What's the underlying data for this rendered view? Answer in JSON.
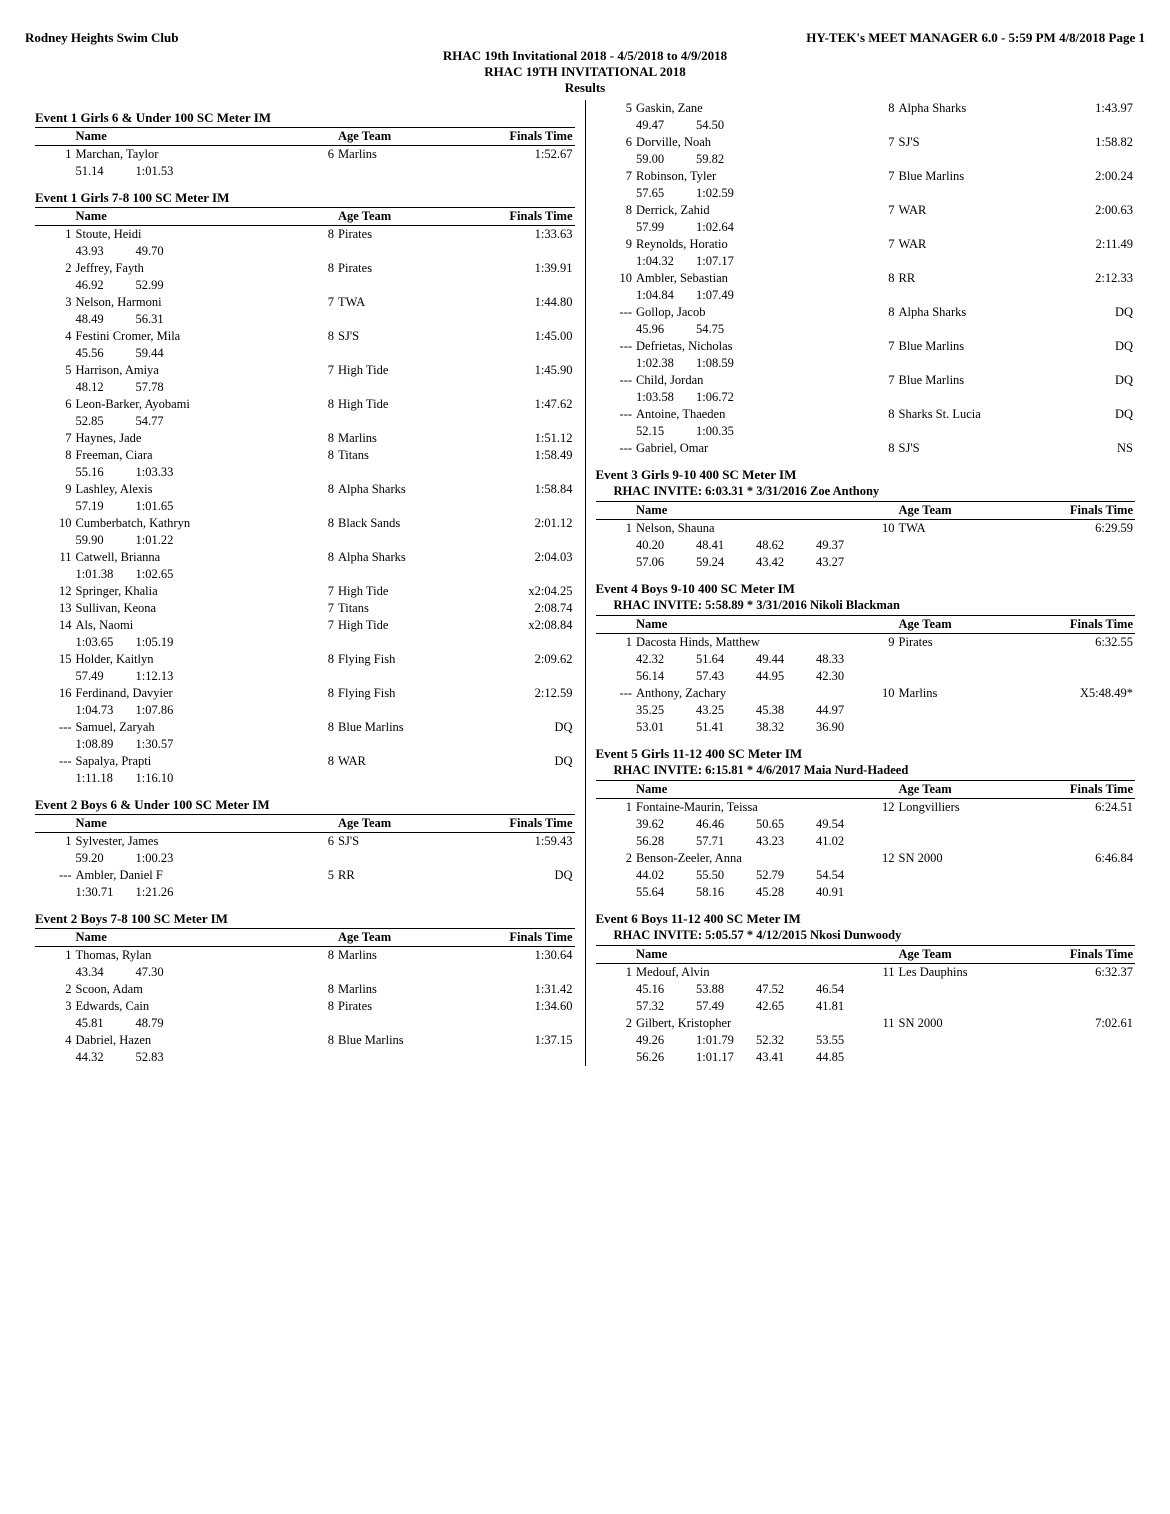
{
  "header": {
    "club": "Rodney Heights Swim Club",
    "right": "HY-TEK's MEET MANAGER 6.0 - 5:59 PM  4/8/2018  Page 1",
    "line1": "RHAC 19th Invitational 2018 - 4/5/2018 to 4/9/2018",
    "line2": "RHAC 19TH INVITATIONAL 2018",
    "line3": "Results"
  },
  "cols": {
    "name": "Name",
    "ageteam": "Age Team",
    "finals": "Finals Time"
  },
  "events_left": [
    {
      "title": "Event 1  Girls 6 & Under 100 SC Meter IM",
      "rows": [
        {
          "p": "1",
          "n": "Marchan, Taylor",
          "a": "6",
          "t": "Marlins",
          "f": "1:52.67",
          "s": [
            "51.14",
            "1:01.53"
          ]
        }
      ]
    },
    {
      "title": "Event 1  Girls 7-8 100 SC Meter IM",
      "rows": [
        {
          "p": "1",
          "n": "Stoute, Heidi",
          "a": "8",
          "t": "Pirates",
          "f": "1:33.63",
          "s": [
            "43.93",
            "49.70"
          ]
        },
        {
          "p": "2",
          "n": "Jeffrey, Fayth",
          "a": "8",
          "t": "Pirates",
          "f": "1:39.91",
          "s": [
            "46.92",
            "52.99"
          ]
        },
        {
          "p": "3",
          "n": "Nelson, Harmoni",
          "a": "7",
          "t": "TWA",
          "f": "1:44.80",
          "s": [
            "48.49",
            "56.31"
          ]
        },
        {
          "p": "4",
          "n": "Festini Cromer, Mila",
          "a": "8",
          "t": "SJ'S",
          "f": "1:45.00",
          "s": [
            "45.56",
            "59.44"
          ]
        },
        {
          "p": "5",
          "n": "Harrison, Amiya",
          "a": "7",
          "t": "High Tide",
          "f": "1:45.90",
          "s": [
            "48.12",
            "57.78"
          ]
        },
        {
          "p": "6",
          "n": "Leon-Barker, Ayobami",
          "a": "8",
          "t": "High Tide",
          "f": "1:47.62",
          "s": [
            "52.85",
            "54.77"
          ]
        },
        {
          "p": "7",
          "n": "Haynes, Jade",
          "a": "8",
          "t": "Marlins",
          "f": "1:51.12"
        },
        {
          "p": "8",
          "n": "Freeman, Ciara",
          "a": "8",
          "t": "Titans",
          "f": "1:58.49",
          "s": [
            "55.16",
            "1:03.33"
          ]
        },
        {
          "p": "9",
          "n": "Lashley, Alexis",
          "a": "8",
          "t": "Alpha Sharks",
          "f": "1:58.84",
          "s": [
            "57.19",
            "1:01.65"
          ]
        },
        {
          "p": "10",
          "n": "Cumberbatch, Kathryn",
          "a": "8",
          "t": "Black Sands",
          "f": "2:01.12",
          "s": [
            "59.90",
            "1:01.22"
          ]
        },
        {
          "p": "11",
          "n": "Catwell, Brianna",
          "a": "8",
          "t": "Alpha Sharks",
          "f": "2:04.03",
          "s": [
            "1:01.38",
            "1:02.65"
          ]
        },
        {
          "p": "12",
          "n": "Springer, Khalia",
          "a": "7",
          "t": "High Tide",
          "f": "x2:04.25"
        },
        {
          "p": "13",
          "n": "Sullivan, Keona",
          "a": "7",
          "t": "Titans",
          "f": "2:08.74"
        },
        {
          "p": "14",
          "n": "Als, Naomi",
          "a": "7",
          "t": "High Tide",
          "f": "x2:08.84",
          "s": [
            "1:03.65",
            "1:05.19"
          ]
        },
        {
          "p": "15",
          "n": "Holder, Kaitlyn",
          "a": "8",
          "t": "Flying Fish",
          "f": "2:09.62",
          "s": [
            "57.49",
            "1:12.13"
          ]
        },
        {
          "p": "16",
          "n": "Ferdinand, Davyier",
          "a": "8",
          "t": "Flying Fish",
          "f": "2:12.59",
          "s": [
            "1:04.73",
            "1:07.86"
          ]
        },
        {
          "p": "---",
          "n": "Samuel, Zaryah",
          "a": "8",
          "t": "Blue Marlins",
          "f": "DQ",
          "s": [
            "1:08.89",
            "1:30.57"
          ]
        },
        {
          "p": "---",
          "n": "Sapalya, Prapti",
          "a": "8",
          "t": "WAR",
          "f": "DQ",
          "s": [
            "1:11.18",
            "1:16.10"
          ]
        }
      ]
    },
    {
      "title": "Event 2  Boys 6 & Under 100 SC Meter IM",
      "rows": [
        {
          "p": "1",
          "n": "Sylvester, James",
          "a": "6",
          "t": "SJ'S",
          "f": "1:59.43",
          "s": [
            "59.20",
            "1:00.23"
          ]
        },
        {
          "p": "---",
          "n": "Ambler, Daniel F",
          "a": "5",
          "t": "RR",
          "f": "DQ",
          "s": [
            "1:30.71",
            "1:21.26"
          ]
        }
      ]
    },
    {
      "title": "Event 2  Boys 7-8 100 SC Meter IM",
      "rows": [
        {
          "p": "1",
          "n": "Thomas, Rylan",
          "a": "8",
          "t": "Marlins",
          "f": "1:30.64",
          "s": [
            "43.34",
            "47.30"
          ]
        },
        {
          "p": "2",
          "n": "Scoon, Adam",
          "a": "8",
          "t": "Marlins",
          "f": "1:31.42"
        },
        {
          "p": "3",
          "n": "Edwards, Cain",
          "a": "8",
          "t": "Pirates",
          "f": "1:34.60",
          "s": [
            "45.81",
            "48.79"
          ]
        },
        {
          "p": "4",
          "n": "Dabriel, Hazen",
          "a": "8",
          "t": "Blue Marlins",
          "f": "1:37.15",
          "s": [
            "44.32",
            "52.83"
          ]
        }
      ]
    }
  ],
  "events_right": [
    {
      "continuation": true,
      "rows": [
        {
          "p": "5",
          "n": "Gaskin, Zane",
          "a": "8",
          "t": "Alpha Sharks",
          "f": "1:43.97",
          "s": [
            "49.47",
            "54.50"
          ]
        },
        {
          "p": "6",
          "n": "Dorville, Noah",
          "a": "7",
          "t": "SJ'S",
          "f": "1:58.82",
          "s": [
            "59.00",
            "59.82"
          ]
        },
        {
          "p": "7",
          "n": "Robinson, Tyler",
          "a": "7",
          "t": "Blue Marlins",
          "f": "2:00.24",
          "s": [
            "57.65",
            "1:02.59"
          ]
        },
        {
          "p": "8",
          "n": "Derrick, Zahid",
          "a": "7",
          "t": "WAR",
          "f": "2:00.63",
          "s": [
            "57.99",
            "1:02.64"
          ]
        },
        {
          "p": "9",
          "n": "Reynolds, Horatio",
          "a": "7",
          "t": "WAR",
          "f": "2:11.49",
          "s": [
            "1:04.32",
            "1:07.17"
          ]
        },
        {
          "p": "10",
          "n": "Ambler, Sebastian",
          "a": "8",
          "t": "RR",
          "f": "2:12.33",
          "s": [
            "1:04.84",
            "1:07.49"
          ]
        },
        {
          "p": "---",
          "n": "Gollop, Jacob",
          "a": "8",
          "t": "Alpha Sharks",
          "f": "DQ",
          "s": [
            "45.96",
            "54.75"
          ]
        },
        {
          "p": "---",
          "n": "Defrietas, Nicholas",
          "a": "7",
          "t": "Blue Marlins",
          "f": "DQ",
          "s": [
            "1:02.38",
            "1:08.59"
          ]
        },
        {
          "p": "---",
          "n": "Child, Jordan",
          "a": "7",
          "t": "Blue Marlins",
          "f": "DQ",
          "s": [
            "1:03.58",
            "1:06.72"
          ]
        },
        {
          "p": "---",
          "n": "Antoine, Thaeden",
          "a": "8",
          "t": "Sharks St. Lucia",
          "f": "DQ",
          "s": [
            "52.15",
            "1:00.35"
          ]
        },
        {
          "p": "---",
          "n": "Gabriel, Omar",
          "a": "8",
          "t": "SJ'S",
          "f": "NS"
        }
      ]
    },
    {
      "title": "Event 3  Girls 9-10 400 SC Meter IM",
      "invite": "RHAC INVITE:    6:03.31  *  3/31/2016    Zoe Anthony",
      "rows": [
        {
          "p": "1",
          "n": "Nelson, Shauna",
          "a": "10",
          "t": "TWA",
          "f": "6:29.59",
          "s": [
            "40.20",
            "48.41",
            "48.62",
            "49.37"
          ],
          "s2": [
            "57.06",
            "59.24",
            "43.42",
            "43.27"
          ]
        }
      ]
    },
    {
      "title": "Event 4  Boys 9-10 400 SC Meter IM",
      "invite": "RHAC INVITE:    5:58.89  *  3/31/2016    Nikoli Blackman",
      "rows": [
        {
          "p": "1",
          "n": "Dacosta Hinds, Matthew",
          "a": "9",
          "t": "Pirates",
          "f": "6:32.55",
          "s": [
            "42.32",
            "51.64",
            "49.44",
            "48.33"
          ],
          "s2": [
            "56.14",
            "57.43",
            "44.95",
            "42.30"
          ]
        },
        {
          "p": "---",
          "n": "Anthony, Zachary",
          "a": "10",
          "t": "Marlins",
          "f": "X5:48.49*",
          "s": [
            "35.25",
            "43.25",
            "45.38",
            "44.97"
          ],
          "s2": [
            "53.01",
            "51.41",
            "38.32",
            "36.90"
          ]
        }
      ]
    },
    {
      "title": "Event 5  Girls 11-12 400 SC Meter IM",
      "invite": "RHAC INVITE:    6:15.81  *  4/6/2017      Maia Nurd-Hadeed",
      "rows": [
        {
          "p": "1",
          "n": "Fontaine-Maurin, Teissa",
          "a": "12",
          "t": "Longvilliers",
          "f": "6:24.51",
          "s": [
            "39.62",
            "46.46",
            "50.65",
            "49.54"
          ],
          "s2": [
            "56.28",
            "57.71",
            "43.23",
            "41.02"
          ]
        },
        {
          "p": "2",
          "n": "Benson-Zeeler, Anna",
          "a": "12",
          "t": "SN 2000",
          "f": "6:46.84",
          "s": [
            "44.02",
            "55.50",
            "52.79",
            "54.54"
          ],
          "s2": [
            "55.64",
            "58.16",
            "45.28",
            "40.91"
          ]
        }
      ]
    },
    {
      "title": "Event 6  Boys 11-12 400 SC Meter IM",
      "invite": "RHAC INVITE:    5:05.57  *  4/12/2015    Nkosi Dunwoody",
      "rows": [
        {
          "p": "1",
          "n": "Medouf, Alvin",
          "a": "11",
          "t": "Les Dauphins",
          "f": "6:32.37",
          "s": [
            "45.16",
            "53.88",
            "47.52",
            "46.54"
          ],
          "s2": [
            "57.32",
            "57.49",
            "42.65",
            "41.81"
          ]
        },
        {
          "p": "2",
          "n": "Gilbert, Kristopher",
          "a": "11",
          "t": "SN 2000",
          "f": "7:02.61",
          "s": [
            "49.26",
            "1:01.79",
            "52.32",
            "53.55"
          ],
          "s2": [
            "56.26",
            "1:01.17",
            "43.41",
            "44.85"
          ]
        }
      ]
    }
  ]
}
